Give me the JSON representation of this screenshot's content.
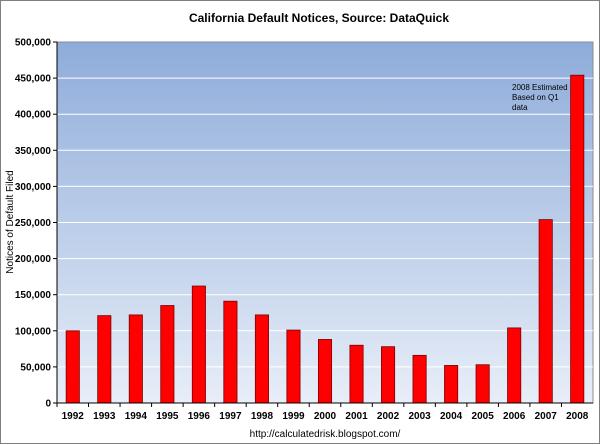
{
  "chart_data": {
    "type": "bar",
    "title": "California Default Notices, Source: DataQuick",
    "xlabel": "",
    "ylabel": "Notices of Default Filed",
    "ylim": [
      0,
      500000
    ],
    "y_ticks": [
      "0",
      "50,000",
      "100,000",
      "150,000",
      "200,000",
      "250,000",
      "300,000",
      "350,000",
      "400,000",
      "450,000",
      "500,000"
    ],
    "categories": [
      "1992",
      "1993",
      "1994",
      "1995",
      "1996",
      "1997",
      "1998",
      "1999",
      "2000",
      "2001",
      "2002",
      "2003",
      "2004",
      "2005",
      "2006",
      "2007",
      "2008"
    ],
    "values": [
      100000,
      121000,
      122000,
      135000,
      162000,
      141000,
      122000,
      101000,
      88000,
      80000,
      78000,
      66000,
      52000,
      53000,
      104000,
      254000,
      454000
    ],
    "bar_color": "#ff0000",
    "annotation": [
      "2008 Estimated",
      "Based on Q1",
      "data"
    ],
    "source": "http://calculatedrisk.blogspot.com/"
  }
}
